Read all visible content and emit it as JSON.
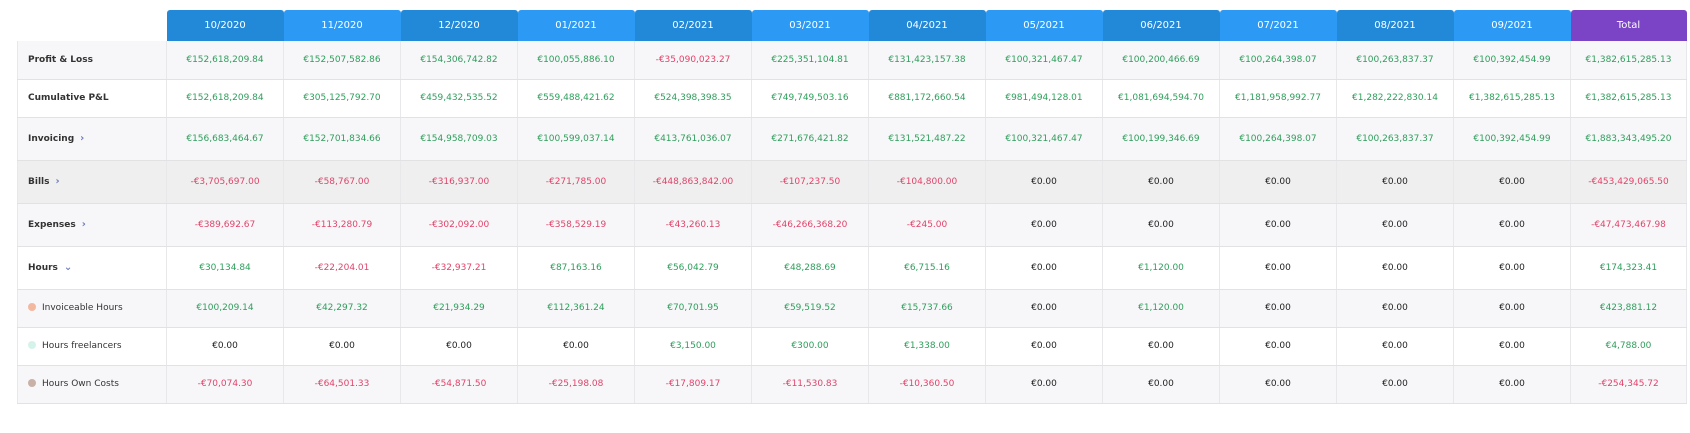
{
  "months": [
    "10/2020",
    "11/2020",
    "12/2020",
    "01/2021",
    "02/2021",
    "03/2021",
    "04/2021",
    "05/2021",
    "06/2021",
    "07/2021",
    "08/2021",
    "09/2021"
  ],
  "total_label": "Total",
  "colors": {
    "dark": "#2288d8",
    "light": "#2c9af4",
    "total": "#7b44c7",
    "positive": "#2f9e5c",
    "negative": "#e0446a"
  },
  "rows": [
    {
      "label": "Profit & Loss",
      "style": "main",
      "values": [
        "€152,618,209.84",
        "€152,507,582.86",
        "€154,306,742.82",
        "€100,055,886.10",
        "-€35,090,023.27",
        "€225,351,104.81",
        "€131,423,157.38",
        "€100,321,467.47",
        "€100,200,466.69",
        "€100,264,398.07",
        "€100,263,837.37",
        "€100,392,454.99",
        "€1,382,615,285.13"
      ]
    },
    {
      "label": "Cumulative P&L",
      "style": "main",
      "values": [
        "€152,618,209.84",
        "€305,125,792.70",
        "€459,432,535.52",
        "€559,488,421.62",
        "€524,398,398.35",
        "€749,749,503.16",
        "€881,172,660.54",
        "€981,494,128.01",
        "€1,081,694,594.70",
        "€1,181,958,992.77",
        "€1,282,222,830.14",
        "€1,382,615,285.13",
        "€1,382,615,285.13"
      ]
    },
    {
      "label": "Invoicing",
      "style": "main",
      "chevron": "›",
      "values": [
        "€156,683,464.67",
        "€152,701,834.66",
        "€154,958,709.03",
        "€100,599,037.14",
        "€413,761,036.07",
        "€271,676,421.82",
        "€131,521,487.22",
        "€100,321,467.47",
        "€100,199,346.69",
        "€100,264,398.07",
        "€100,263,837.37",
        "€100,392,454.99",
        "€1,883,343,495.20"
      ]
    },
    {
      "label": "Bills",
      "style": "hl",
      "chevron": "›",
      "values": [
        "-€3,705,697.00",
        "-€58,767.00",
        "-€316,937.00",
        "-€271,785.00",
        "-€448,863,842.00",
        "-€107,237.50",
        "-€104,800.00",
        "€0.00",
        "€0.00",
        "€0.00",
        "€0.00",
        "€0.00",
        "-€453,429,065.50"
      ]
    },
    {
      "label": "Expenses",
      "style": "main",
      "chevron": "›",
      "values": [
        "-€389,692.67",
        "-€113,280.79",
        "-€302,092.00",
        "-€358,529.19",
        "-€43,260.13",
        "-€46,266,368.20",
        "-€245.00",
        "€0.00",
        "€0.00",
        "€0.00",
        "€0.00",
        "€0.00",
        "-€47,473,467.98"
      ]
    },
    {
      "label": "Hours",
      "style": "main",
      "chevron": "⌄",
      "values": [
        "€30,134.84",
        "-€22,204.01",
        "-€32,937.21",
        "€87,163.16",
        "€56,042.79",
        "€48,288.69",
        "€6,715.16",
        "€0.00",
        "€1,120.00",
        "€0.00",
        "€0.00",
        "€0.00",
        "€174,323.41"
      ]
    },
    {
      "label": "Invoiceable Hours",
      "style": "sub",
      "dot": "#f3b8a0",
      "values": [
        "€100,209.14",
        "€42,297.32",
        "€21,934.29",
        "€112,361.24",
        "€70,701.95",
        "€59,519.52",
        "€15,737.66",
        "€0.00",
        "€1,120.00",
        "€0.00",
        "€0.00",
        "€0.00",
        "€423,881.12"
      ]
    },
    {
      "label": "Hours freelancers",
      "style": "sub",
      "dot": "#d5f3ea",
      "values": [
        "€0.00",
        "€0.00",
        "€0.00",
        "€0.00",
        "€3,150.00",
        "€300.00",
        "€1,338.00",
        "€0.00",
        "€0.00",
        "€0.00",
        "€0.00",
        "€0.00",
        "€4,788.00"
      ]
    },
    {
      "label": "Hours Own Costs",
      "style": "sub",
      "dot": "#c9b1a8",
      "values": [
        "-€70,074.30",
        "-€64,501.33",
        "-€54,871.50",
        "-€25,198.08",
        "-€17,809.17",
        "-€11,530.83",
        "-€10,360.50",
        "€0.00",
        "€0.00",
        "€0.00",
        "€0.00",
        "€0.00",
        "-€254,345.72"
      ]
    }
  ]
}
